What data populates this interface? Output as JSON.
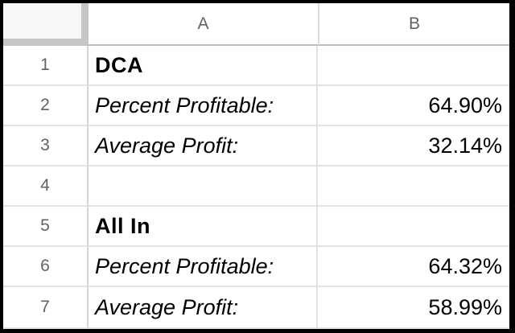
{
  "app": {
    "type": "spreadsheet-grid"
  },
  "column_headers": {
    "a": "A",
    "b": "B"
  },
  "rows": [
    {
      "num": "1",
      "a": "DCA",
      "b": ""
    },
    {
      "num": "2",
      "a": "Percent Profitable:",
      "b": "64.90%"
    },
    {
      "num": "3",
      "a": "Average Profit:",
      "b": "32.14%"
    },
    {
      "num": "4",
      "a": "",
      "b": ""
    },
    {
      "num": "5",
      "a": "All In",
      "b": ""
    },
    {
      "num": "6",
      "a": "Percent Profitable:",
      "b": "64.32%"
    },
    {
      "num": "7",
      "a": "Average Profit:",
      "b": "58.99%"
    }
  ],
  "colors": {
    "frame": "#000000",
    "cell_background": "#ffffff",
    "corner_fill": "#f6f7f9",
    "corner_border": "#c4c6c8",
    "header_bottom_border": "#bcbfc2",
    "grid_line": "#e2e2e2",
    "header_text": "#5f6368",
    "cell_text": "#000000"
  }
}
